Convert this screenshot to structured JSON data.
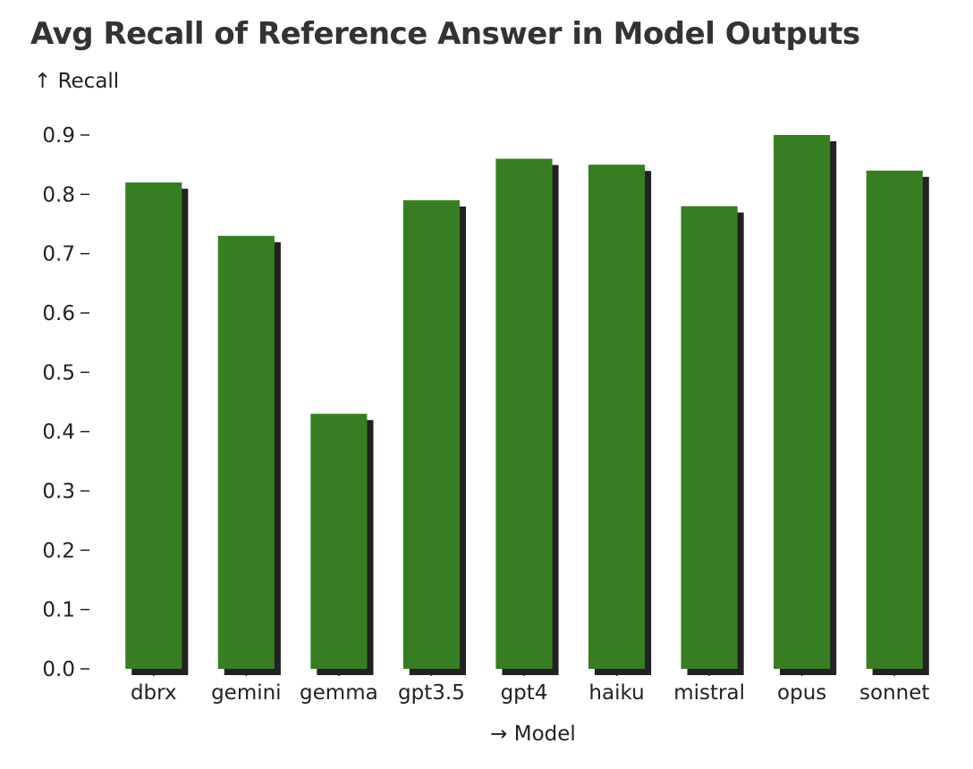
{
  "chart_data": {
    "type": "bar",
    "title": "Avg Recall of Reference Answer in Model Outputs",
    "xlabel": "→ Model",
    "ylabel": "↑ Recall",
    "categories": [
      "dbrx",
      "gemini",
      "gemma",
      "gpt3.5",
      "gpt4",
      "haiku",
      "mistral",
      "opus",
      "sonnet"
    ],
    "values": [
      0.82,
      0.73,
      0.43,
      0.79,
      0.86,
      0.85,
      0.78,
      0.9,
      0.84
    ],
    "ylim": [
      0,
      0.9
    ],
    "yticks": [
      "0.0",
      "0.1",
      "0.2",
      "0.3",
      "0.4",
      "0.5",
      "0.6",
      "0.7",
      "0.8",
      "0.9"
    ],
    "grid": false,
    "bar_color": "#377e22",
    "shadow_color": "#222222"
  }
}
